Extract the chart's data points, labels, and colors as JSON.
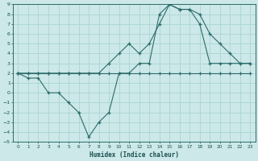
{
  "title": "",
  "xlabel": "Humidex (Indice chaleur)",
  "ylabel": "",
  "bg_color": "#cce8e8",
  "line_color": "#2d6b6b",
  "grid_color": "#aad4d4",
  "xlim": [
    -0.5,
    23.5
  ],
  "ylim": [
    -5,
    9
  ],
  "xticks": [
    0,
    1,
    2,
    3,
    4,
    5,
    6,
    7,
    8,
    9,
    10,
    11,
    12,
    13,
    14,
    15,
    16,
    17,
    18,
    19,
    20,
    21,
    22,
    23
  ],
  "yticks": [
    -5,
    -4,
    -3,
    -2,
    -1,
    0,
    1,
    2,
    3,
    4,
    5,
    6,
    7,
    8,
    9
  ],
  "line1_x": [
    0,
    1,
    2,
    3,
    4,
    5,
    6,
    7,
    8,
    9,
    10,
    11,
    12,
    13,
    14,
    15,
    16,
    17,
    18,
    19,
    20,
    21,
    22,
    23
  ],
  "line1_y": [
    2,
    2,
    2,
    2,
    2,
    2,
    2,
    2,
    2,
    2,
    2,
    2,
    2,
    2,
    2,
    2,
    2,
    2,
    2,
    2,
    2,
    2,
    2,
    2
  ],
  "line2_x": [
    0,
    1,
    2,
    3,
    4,
    5,
    6,
    7,
    8,
    9,
    10,
    11,
    12,
    13,
    14,
    15,
    16,
    17,
    18,
    19,
    20,
    21,
    22,
    23
  ],
  "line2_y": [
    2,
    2,
    2,
    2,
    2,
    2,
    2,
    2,
    2,
    3,
    4,
    5,
    4,
    5,
    7,
    9,
    8.5,
    8.5,
    8,
    6,
    5,
    4,
    3,
    3
  ],
  "line3_x": [
    0,
    1,
    2,
    3,
    4,
    5,
    6,
    7,
    8,
    9,
    10,
    11,
    12,
    13,
    14,
    15,
    16,
    17,
    18,
    19,
    20,
    21,
    22,
    23
  ],
  "line3_y": [
    2,
    1.5,
    1.5,
    0,
    0,
    -1,
    -2,
    -4.5,
    -3,
    -2,
    2,
    2,
    3,
    3,
    8,
    9,
    8.5,
    8.5,
    7,
    3,
    3,
    3,
    3,
    3
  ]
}
